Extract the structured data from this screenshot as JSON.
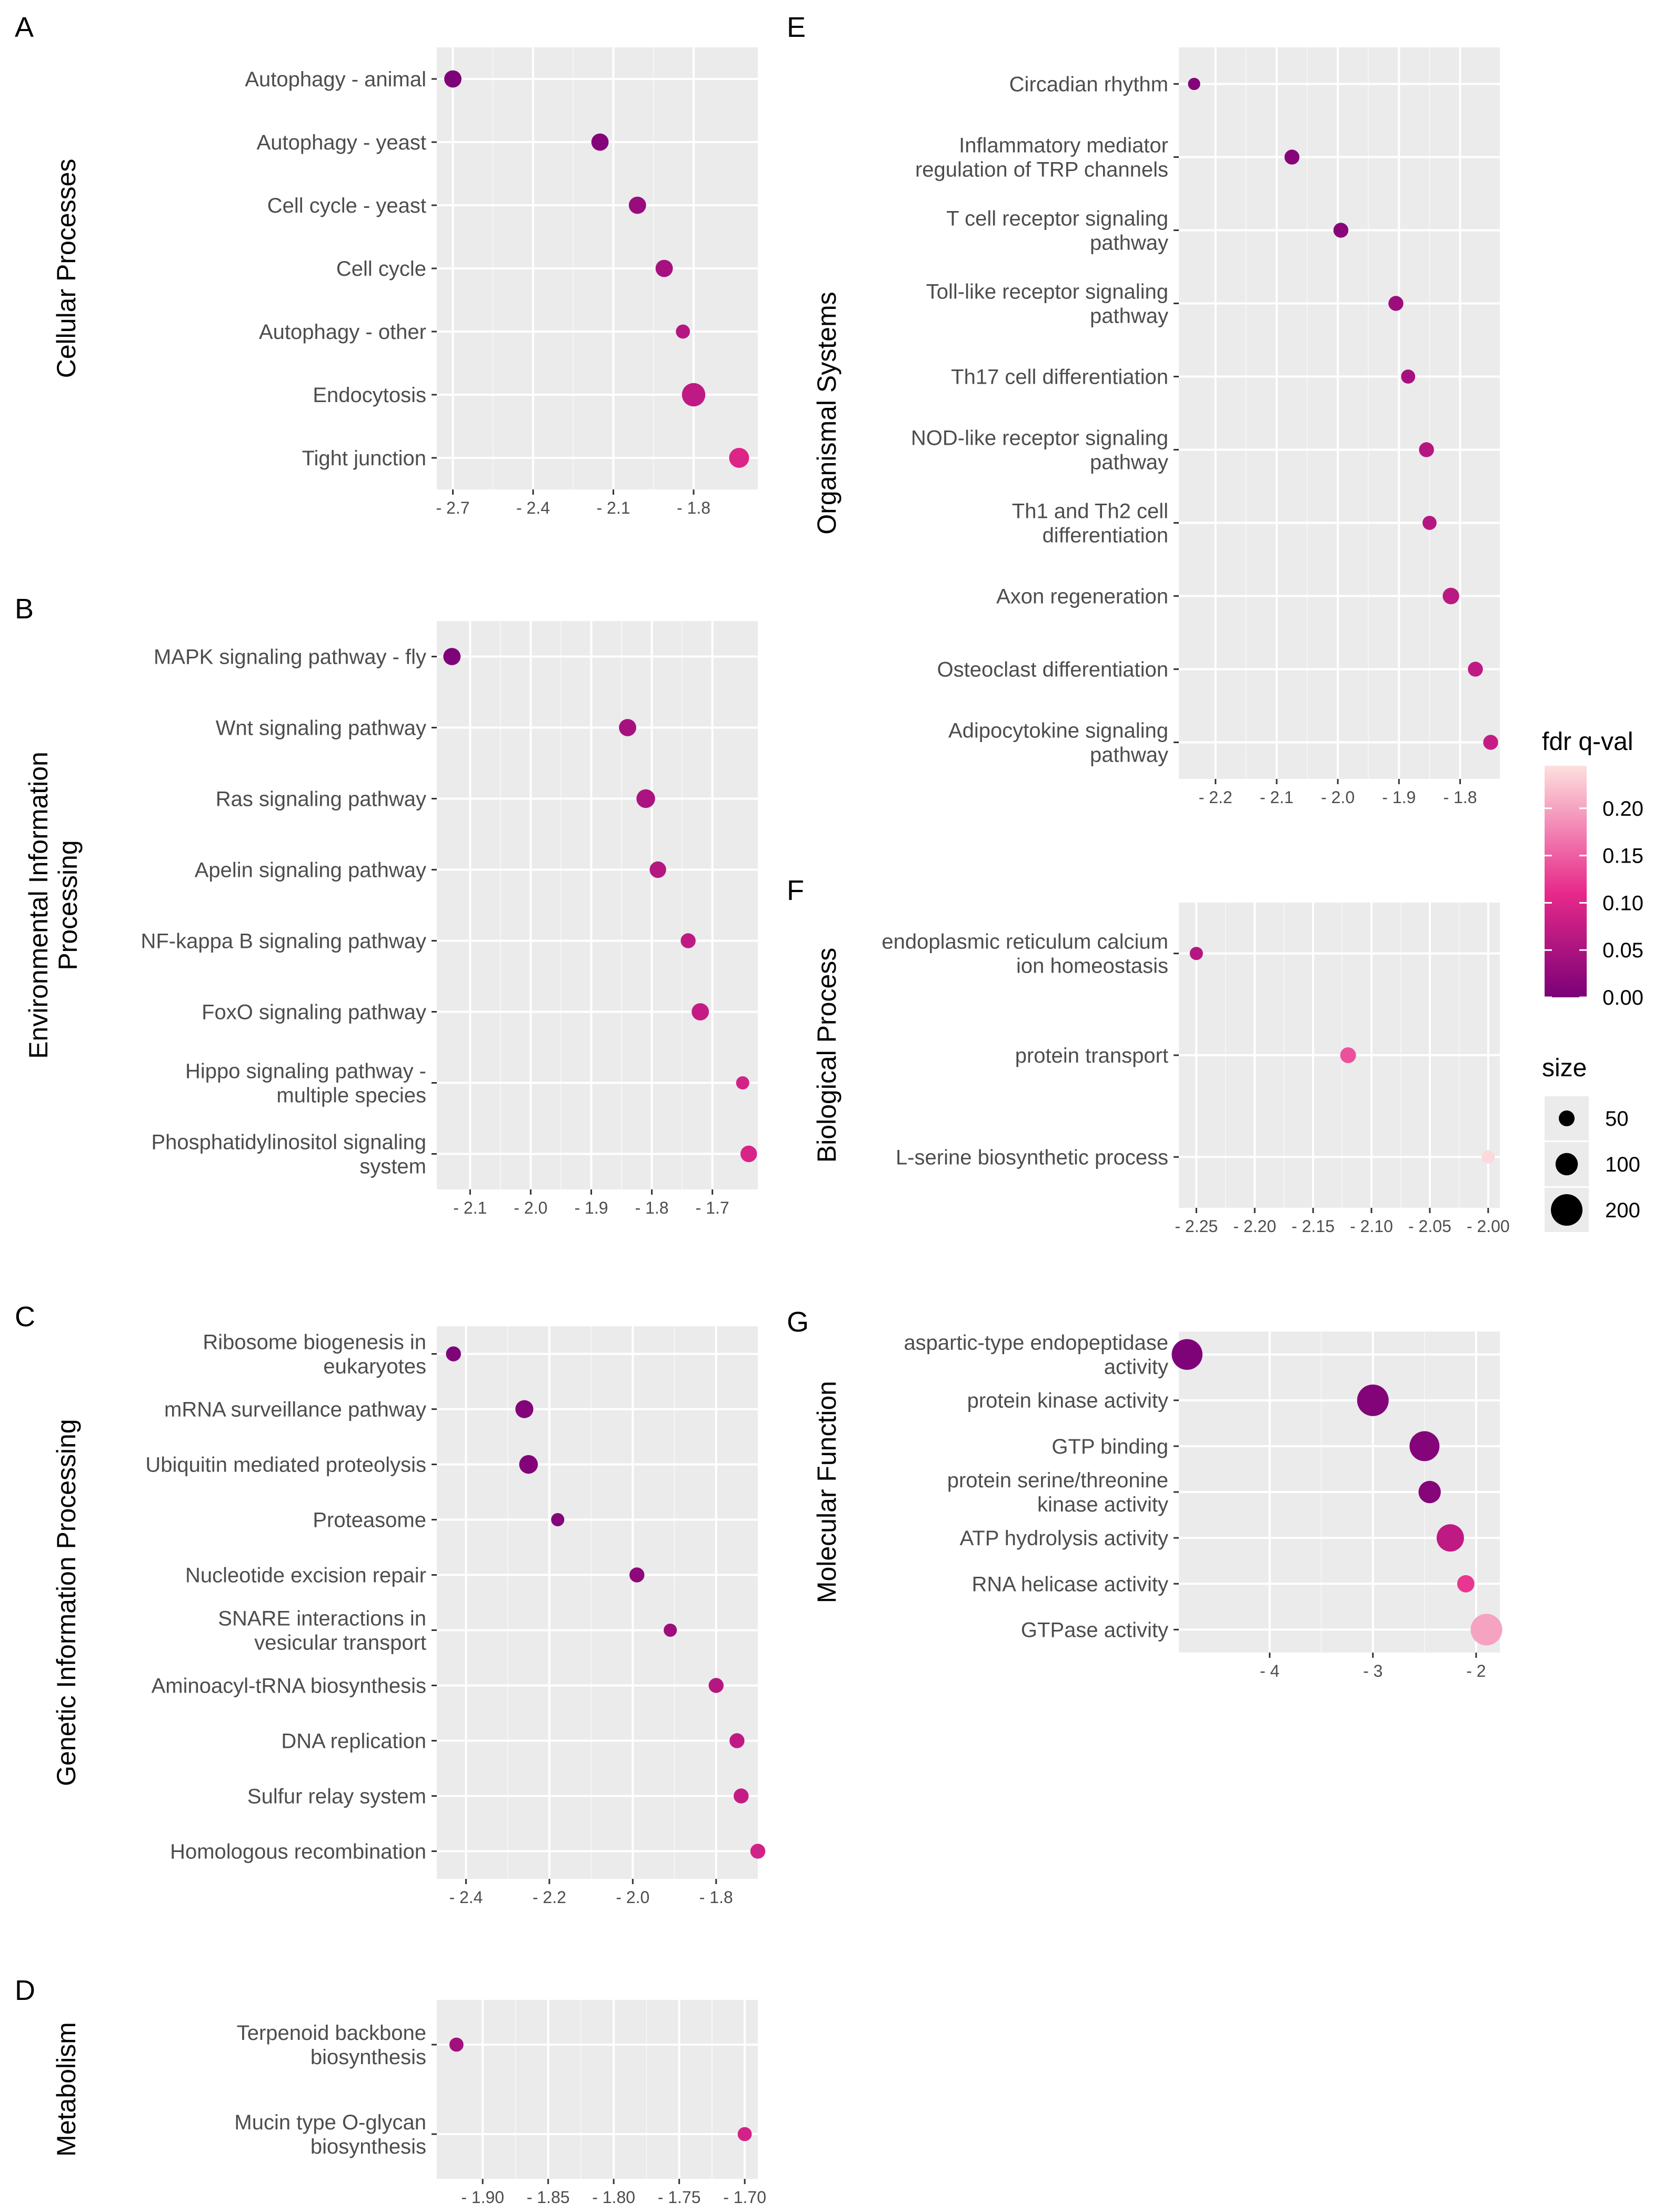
{
  "legend": {
    "color_title": "fdr q-val",
    "color_ticks": [
      "0.00",
      "0.05",
      "0.10",
      "0.15",
      "0.20"
    ],
    "color_tick_values": [
      0.0,
      0.05,
      0.1,
      0.15,
      0.2
    ],
    "color_range": [
      0.0,
      0.245
    ],
    "color_low": "#7a0177",
    "color_mid": "#e7298a",
    "color_high": "#fde0dd",
    "size_title": "size",
    "size_labels": [
      "50",
      "100",
      "200"
    ],
    "size_values": [
      50,
      100,
      200
    ]
  },
  "chart_data": [
    {
      "type": "scatter",
      "panel_label": "A",
      "facet": "Cellular Processes",
      "xlim": [
        -2.76,
        -1.56
      ],
      "xticks": [
        -2.7,
        -2.4,
        -2.1,
        -1.8
      ],
      "xticklabels": [
        "- 2.7",
        "- 2.4",
        "- 2.1",
        "- 1.8"
      ],
      "categories": [
        "Autophagy - animal",
        "Autophagy - yeast",
        "Cell cycle - yeast",
        "Cell cycle",
        "Autophagy - other",
        "Endocytosis",
        "Tight junction"
      ],
      "x": [
        -2.7,
        -2.15,
        -2.01,
        -1.91,
        -1.84,
        -1.8,
        -1.63
      ],
      "fdr": [
        0.005,
        0.01,
        0.03,
        0.045,
        0.06,
        0.07,
        0.1
      ],
      "size": [
        60,
        60,
        60,
        60,
        40,
        110,
        80
      ]
    },
    {
      "type": "scatter",
      "panel_label": "B",
      "facet": "Environmental Information\nProcessing",
      "xlim": [
        -2.155,
        -1.625
      ],
      "xticks": [
        -2.1,
        -2.0,
        -1.9,
        -1.8,
        -1.7
      ],
      "xticklabels": [
        "- 2.1",
        "- 2.0",
        "- 1.9",
        "- 1.8",
        "- 1.7"
      ],
      "categories": [
        "MAPK signaling pathway - fly",
        "Wnt signaling pathway",
        "Ras signaling pathway",
        "Apelin signaling pathway",
        "NF-kappa B signaling pathway",
        "FoxO signaling pathway",
        "Hippo signaling pathway -\nmultiple species",
        "Phosphatidylinositol signaling\nsystem"
      ],
      "x": [
        -2.13,
        -1.84,
        -1.81,
        -1.79,
        -1.74,
        -1.72,
        -1.65,
        -1.64
      ],
      "fdr": [
        0.005,
        0.045,
        0.05,
        0.06,
        0.07,
        0.075,
        0.09,
        0.095
      ],
      "size": [
        60,
        60,
        70,
        55,
        45,
        60,
        35,
        55
      ]
    },
    {
      "type": "scatter",
      "panel_label": "C",
      "facet": "Genetic Information Processing",
      "xlim": [
        -2.47,
        -1.7
      ],
      "xticks": [
        -2.4,
        -2.2,
        -2.0,
        -1.8
      ],
      "xticklabels": [
        "- 2.4",
        "- 2.2",
        "- 2.0",
        "- 1.8"
      ],
      "categories": [
        "Ribosome biogenesis in\neukaryotes",
        "mRNA surveillance pathway",
        "Ubiquitin mediated proteolysis",
        "Proteasome",
        "Nucleotide excision repair",
        "SNARE interactions in\nvesicular transport",
        "Aminoacyl-tRNA biosynthesis",
        "DNA replication",
        "Sulfur relay system",
        "Homologous recombination"
      ],
      "x": [
        -2.43,
        -2.26,
        -2.25,
        -2.18,
        -1.99,
        -1.91,
        -1.8,
        -1.75,
        -1.74,
        -1.7
      ],
      "fdr": [
        0.005,
        0.008,
        0.008,
        0.01,
        0.02,
        0.035,
        0.06,
        0.07,
        0.075,
        0.09
      ],
      "size": [
        45,
        65,
        70,
        35,
        45,
        35,
        45,
        45,
        45,
        45
      ]
    },
    {
      "type": "scatter",
      "panel_label": "D",
      "facet": "Metabolism",
      "xlim": [
        -1.935,
        -1.69
      ],
      "xticks": [
        -1.9,
        -1.85,
        -1.8,
        -1.75,
        -1.7
      ],
      "xticklabels": [
        "- 1.90",
        "- 1.85",
        "- 1.80",
        "- 1.75",
        "- 1.70"
      ],
      "categories": [
        "Terpenoid backbone\nbiosynthesis",
        "Mucin type O-glycan\nbiosynthesis"
      ],
      "x": [
        -1.92,
        -1.7
      ],
      "fdr": [
        0.04,
        0.09
      ],
      "size": [
        40,
        40
      ]
    },
    {
      "type": "scatter",
      "panel_label": "E",
      "facet": "Organismal Systems",
      "xlim": [
        -2.26,
        -1.735
      ],
      "xticks": [
        -2.2,
        -2.1,
        -2.0,
        -1.9,
        -1.8
      ],
      "xticklabels": [
        "- 2.2",
        "- 2.1",
        "- 2.0",
        "- 1.9",
        "- 1.8"
      ],
      "categories": [
        "Circadian rhythm",
        "Inflammatory mediator\nregulation of TRP channels",
        "T cell receptor signaling\npathway",
        "Toll-like receptor signaling\npathway",
        "Th17 cell differentiation",
        "NOD-like receptor signaling\npathway",
        "Th1 and Th2 cell\ndifferentiation",
        "Axon regeneration",
        "Osteoclast differentiation",
        "Adipocytokine signaling\npathway"
      ],
      "x": [
        -2.235,
        -2.075,
        -1.995,
        -1.905,
        -1.885,
        -1.855,
        -1.85,
        -1.815,
        -1.775,
        -1.75
      ],
      "fdr": [
        0.01,
        0.012,
        0.015,
        0.035,
        0.045,
        0.06,
        0.06,
        0.065,
        0.07,
        0.075
      ],
      "size": [
        30,
        45,
        45,
        45,
        40,
        45,
        40,
        55,
        45,
        45
      ]
    },
    {
      "type": "scatter",
      "panel_label": "F",
      "facet": "Biological Process",
      "xlim": [
        -2.265,
        -1.99
      ],
      "xticks": [
        -2.25,
        -2.2,
        -2.15,
        -2.1,
        -2.05,
        -2.0
      ],
      "xticklabels": [
        "- 2.25",
        "- 2.20",
        "- 2.15",
        "- 2.10",
        "- 2.05",
        "- 2.00"
      ],
      "categories": [
        "endoplasmic reticulum calcium\nion homeostasis",
        "protein transport",
        "L-serine biosynthetic process"
      ],
      "x": [
        -2.25,
        -2.12,
        -2.0
      ],
      "fdr": [
        0.06,
        0.14,
        0.24
      ],
      "size": [
        35,
        50,
        35
      ]
    },
    {
      "type": "scatter",
      "panel_label": "G",
      "facet": "Molecular Function",
      "xlim": [
        -4.88,
        -1.77
      ],
      "xticks": [
        -4,
        -3,
        -2
      ],
      "xticklabels": [
        "- 4",
        "- 3",
        "- 2"
      ],
      "categories": [
        "aspartic-type endopeptidase\nactivity",
        "protein kinase activity",
        "GTP binding",
        "protein serine/threonine\nkinase activity",
        "ATP hydrolysis activity",
        "RNA helicase activity",
        "GTPase activity"
      ],
      "x": [
        -4.8,
        -3.0,
        -2.5,
        -2.45,
        -2.25,
        -2.1,
        -1.9
      ],
      "fdr": [
        0.005,
        0.008,
        0.01,
        0.012,
        0.07,
        0.12,
        0.2
      ],
      "size": [
        190,
        200,
        180,
        100,
        150,
        60,
        200
      ]
    }
  ]
}
